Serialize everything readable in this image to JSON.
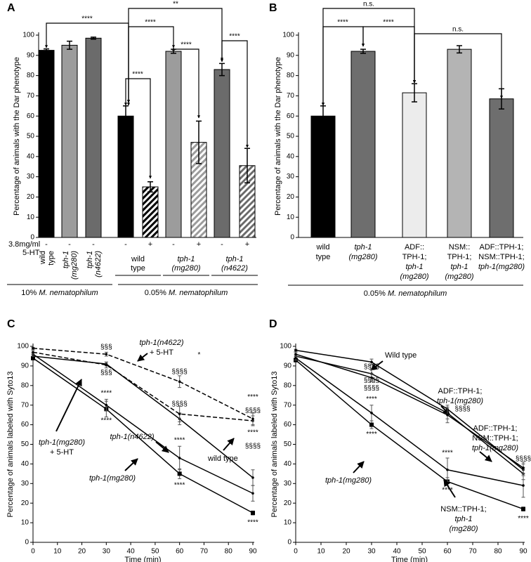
{
  "chart_data": [
    {
      "panel": "A",
      "type": "bar",
      "ylabel": "Percentage of animals with the Dar phenotype",
      "ylim": [
        0,
        100
      ],
      "yticks": [
        0,
        10,
        20,
        30,
        40,
        50,
        60,
        70,
        80,
        90,
        100
      ],
      "categories": [
        [
          "wild",
          "type"
        ],
        [
          "tph-1",
          "(mg280)"
        ],
        [
          "tph-1",
          "(n4622)"
        ],
        null,
        null,
        null,
        null,
        null,
        null
      ],
      "values": [
        92.5,
        95,
        98.5,
        60,
        25,
        92,
        47,
        83,
        35.5
      ],
      "errors": [
        0.7,
        2,
        0.5,
        5,
        2.5,
        1,
        10.5,
        3,
        8.5
      ],
      "colors": [
        "#000000",
        "#9c9c9c",
        "#6b6b6b",
        "#000000",
        "#000000",
        "#9c9c9c",
        "#9c9c9c",
        "#6b6b6b",
        "#6b6b6b"
      ],
      "hatched": [
        false,
        false,
        false,
        false,
        true,
        false,
        true,
        false,
        true
      ],
      "treatment_label": [
        "3.8mg/ml",
        "5-HT"
      ],
      "treatment": [
        "-",
        "-",
        "-",
        "-",
        "+",
        "-",
        "+",
        "-",
        "+"
      ],
      "groups": [
        [
          "wild",
          "type"
        ],
        [
          "tph-1",
          "(mg280)"
        ],
        [
          "tph-1",
          "(n4622)"
        ]
      ],
      "conditions": [
        "10% M. nematophilum",
        "0.05% M. nematophilum"
      ],
      "annotations": [
        "****",
        "**",
        "****",
        "****",
        "****",
        "****"
      ]
    },
    {
      "panel": "B",
      "type": "bar",
      "ylabel": "Percentage of animals with the Dar phenotype",
      "ylim": [
        0,
        100
      ],
      "yticks": [
        0,
        10,
        20,
        30,
        40,
        50,
        60,
        70,
        80,
        90,
        100
      ],
      "categories": [
        [
          "wild",
          "type"
        ],
        [
          "tph-1",
          "(mg280)"
        ],
        [
          "ADF::",
          "TPH-1;",
          "tph-1",
          "(mg280)"
        ],
        [
          "NSM::",
          "TPH-1;",
          "tph-1",
          "(mg280)"
        ],
        [
          "ADF::TPH-1;",
          "NSM::TPH-1;",
          "tph-1(mg280)"
        ]
      ],
      "values": [
        60,
        92,
        71.5,
        93,
        68.5
      ],
      "errors": [
        5,
        1,
        4.5,
        1.8,
        5
      ],
      "colors": [
        "#000000",
        "#6e6e6e",
        "#ececec",
        "#b4b4b4",
        "#6e6e6e"
      ],
      "conditions": [
        "0.05% M. nematophilum"
      ],
      "annotations": [
        "n.s.",
        "****",
        "****",
        "n.s."
      ]
    },
    {
      "panel": "C",
      "type": "line",
      "xlabel": "Time (min)",
      "ylabel": "Percentage of animals labeled with Syto13",
      "x": [
        0,
        30,
        60,
        90
      ],
      "xlim": [
        0,
        90
      ],
      "xticks": [
        0,
        10,
        20,
        30,
        40,
        50,
        60,
        70,
        80,
        90
      ],
      "ylim": [
        0,
        100
      ],
      "yticks": [
        0,
        10,
        20,
        30,
        40,
        50,
        60,
        70,
        80,
        90,
        100
      ],
      "series": [
        {
          "name": [
            "wild type"
          ],
          "values": [
            95,
            91,
            63,
            33
          ],
          "errors": [
            1,
            1,
            3,
            4
          ]
        },
        {
          "name": [
            "tph-1(mg280)"
          ],
          "values": [
            94,
            68,
            35,
            15
          ],
          "errors": [
            1,
            4,
            2.5,
            1
          ],
          "marker": "square"
        },
        {
          "name": [
            "tph-1(n4622)"
          ],
          "values": [
            96,
            70,
            43,
            25
          ],
          "errors": [
            1,
            3,
            6,
            4
          ]
        },
        {
          "name": [
            "tph-1(mg280)",
            "+ 5-HT"
          ],
          "values": [
            97,
            90.5,
            65.5,
            62
          ],
          "errors": [
            1,
            1.5,
            4,
            2.5
          ],
          "dashed": true
        },
        {
          "name": [
            "tph-1(n4622)",
            "+ 5-HT"
          ],
          "values": [
            99,
            96,
            82,
            63
          ],
          "errors": [
            0.5,
            1,
            3,
            3
          ],
          "dashed": true
        }
      ],
      "annotations": [
        "§§§",
        "§§§",
        "****",
        "****",
        "§§§§",
        "§§§§",
        "****",
        "****",
        "****",
        "§§§§",
        "****",
        "§§§§",
        "****",
        "*"
      ]
    },
    {
      "panel": "D",
      "type": "line",
      "xlabel": "Time (min)",
      "ylabel": "Percentage of animals labeled with Syto13",
      "x": [
        0,
        30,
        60,
        90
      ],
      "xlim": [
        0,
        90
      ],
      "xticks": [
        0,
        10,
        20,
        30,
        40,
        50,
        60,
        70,
        80,
        90
      ],
      "ylim": [
        0,
        100
      ],
      "yticks": [
        0,
        10,
        20,
        30,
        40,
        50,
        60,
        70,
        80,
        90,
        100
      ],
      "series": [
        {
          "name": [
            "Wild type"
          ],
          "values": [
            98,
            92,
            68,
            37
          ],
          "errors": [
            0.5,
            1.5,
            2,
            3
          ]
        },
        {
          "name": [
            "ADF::TPH-1;",
            "tph-1(mg280)"
          ],
          "values": [
            95,
            86,
            66,
            35
          ],
          "errors": [
            1,
            2,
            3,
            3
          ]
        },
        {
          "name": [
            "ADF::TPH-1;",
            "NSM::TPH-1;",
            "tph-1(mg280)"
          ],
          "values": [
            96,
            84,
            65,
            38
          ],
          "errors": [
            1,
            2,
            4,
            3
          ]
        },
        {
          "name": [
            "tph-1(mg280)"
          ],
          "values": [
            93,
            60,
            31,
            17
          ],
          "errors": [
            1,
            2,
            2,
            1
          ],
          "marker": "square"
        },
        {
          "name": [
            "NSM::TPH-1;",
            "tph-1",
            "(mg280)"
          ],
          "values": [
            94,
            66,
            37,
            29
          ],
          "errors": [
            1,
            4,
            6,
            6
          ]
        }
      ],
      "annotations": [
        "§§§§",
        "§§§§",
        "§§§§",
        "****",
        "****",
        "§§§§",
        "****",
        "****",
        "§§§§",
        "****"
      ]
    }
  ]
}
